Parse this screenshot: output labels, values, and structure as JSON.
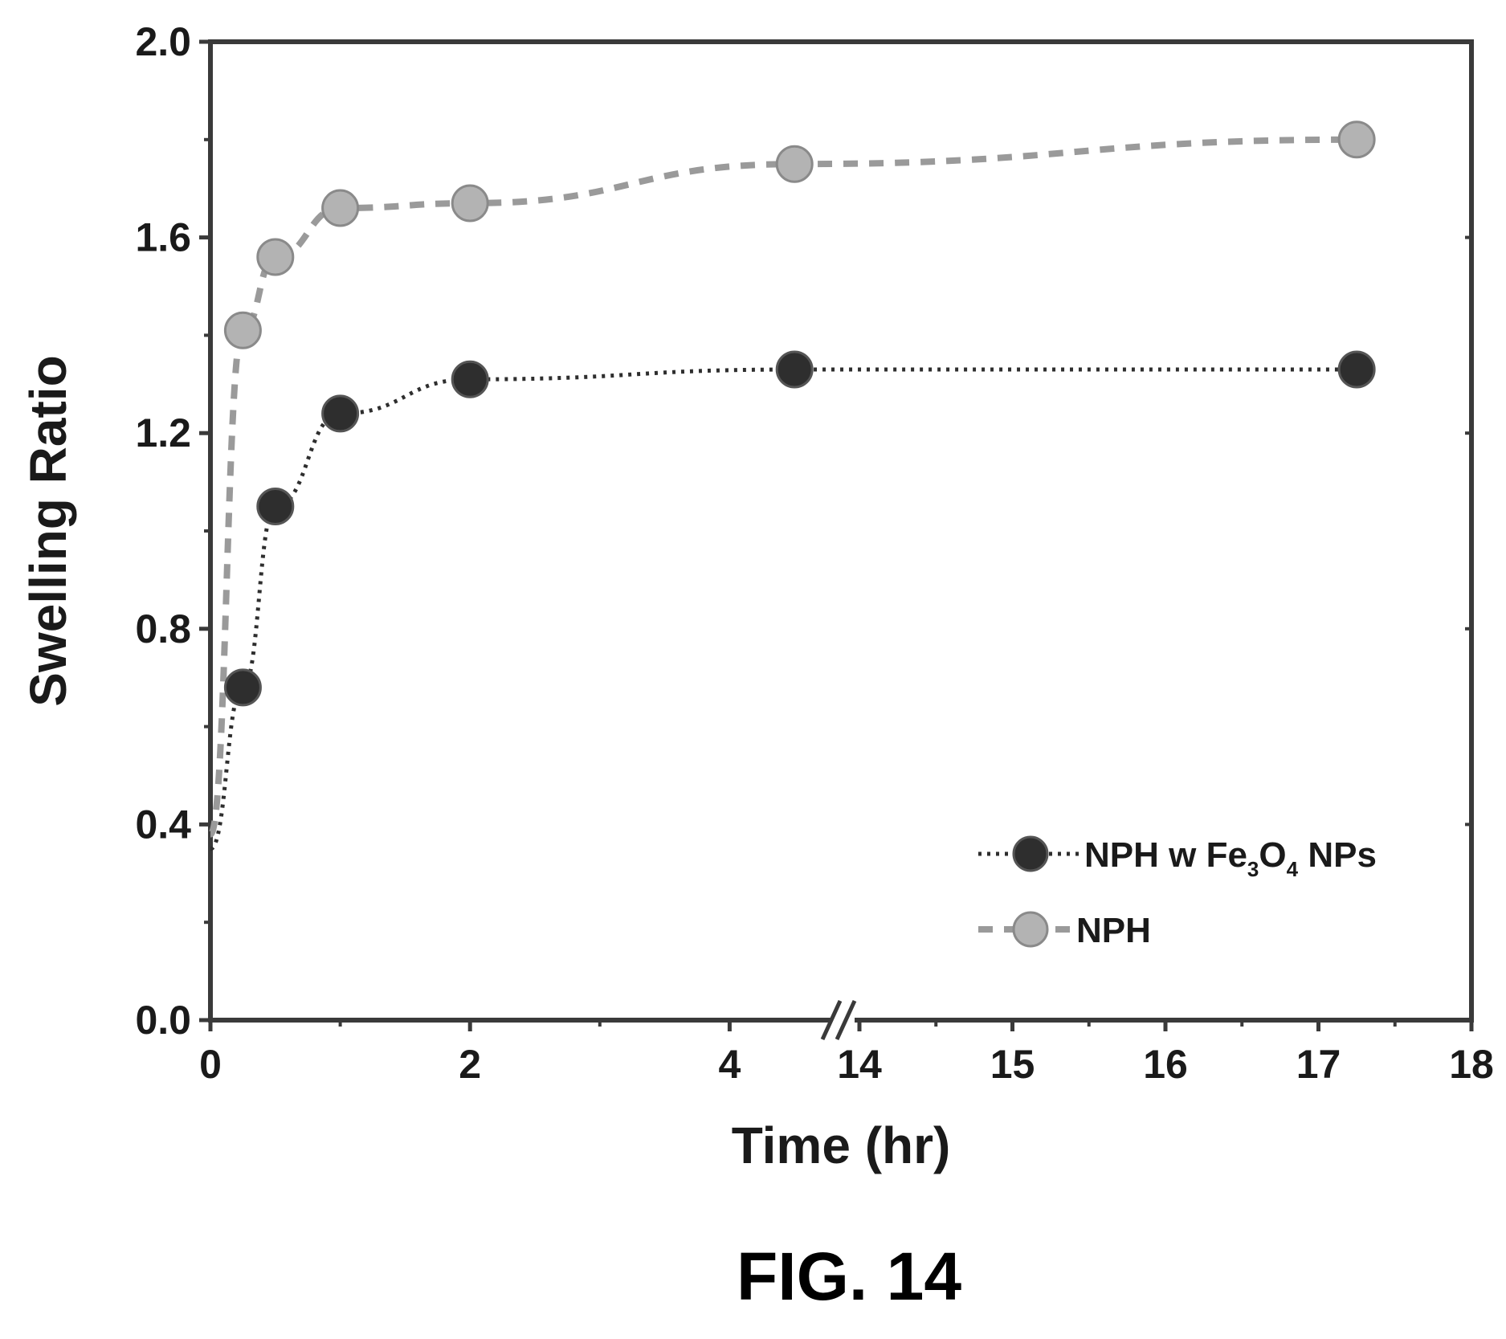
{
  "chart_data": {
    "type": "line",
    "xlabel": "Time (hr)",
    "ylabel": "Swelling Ratio",
    "x_axis_break": {
      "before": 5,
      "after": 14
    },
    "x_ticks_left": [
      "0",
      "2",
      "4"
    ],
    "x_ticks_right": [
      "14",
      "15",
      "16",
      "17",
      "18"
    ],
    "y_ticks": [
      "0.0",
      "0.4",
      "0.8",
      "1.2",
      "1.6",
      "2.0"
    ],
    "xlim": [
      0,
      18
    ],
    "ylim": [
      0,
      2.0
    ],
    "grid": false,
    "legend_position": "lower-right",
    "series": [
      {
        "name": "NPH w Fe3O4 NPs",
        "color": "#2e2e2e",
        "marker": "circle",
        "line_style": "dotted",
        "x": [
          0,
          0.25,
          0.5,
          1,
          2,
          4.5,
          17.25
        ],
        "y": [
          0.35,
          0.68,
          1.05,
          1.24,
          1.31,
          1.33,
          1.33
        ]
      },
      {
        "name": "NPH",
        "color": "#9a9a9a",
        "marker": "circle",
        "line_style": "dashed",
        "x": [
          0,
          0.25,
          0.5,
          1,
          2,
          4.5,
          17.25
        ],
        "y": [
          0.38,
          1.41,
          1.56,
          1.66,
          1.67,
          1.75,
          1.8
        ]
      }
    ]
  },
  "legend": {
    "series0_label_main": "NPH w Fe",
    "series0_sub1": "3",
    "series0_label_mid": "O",
    "series0_sub2": "4",
    "series0_label_end": " NPs",
    "series1_label": "NPH"
  },
  "caption": "FIG. 14"
}
